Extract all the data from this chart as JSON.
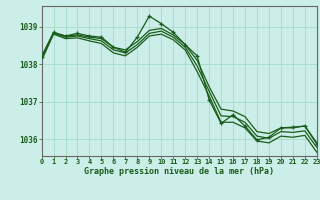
{
  "title": "Graphe pression niveau de la mer (hPa)",
  "background_color": "#cceee8",
  "grid_color": "#aaddcc",
  "line_color": "#1a5c1a",
  "x_min": 0,
  "x_max": 23,
  "y_min": 1035.55,
  "y_max": 1039.55,
  "yticks": [
    1036,
    1037,
    1038,
    1039
  ],
  "xticks": [
    0,
    1,
    2,
    3,
    4,
    5,
    6,
    7,
    8,
    9,
    10,
    11,
    12,
    13,
    14,
    15,
    16,
    17,
    18,
    19,
    20,
    21,
    22,
    23
  ],
  "smooth_series": [
    [
      1038.2,
      1038.83,
      1038.75,
      1038.78,
      1038.72,
      1038.68,
      1038.45,
      1038.38,
      1038.6,
      1038.9,
      1038.95,
      1038.78,
      1038.52,
      1038.1,
      1037.4,
      1036.8,
      1036.75,
      1036.6,
      1036.2,
      1036.15,
      1036.3,
      1036.3,
      1036.35,
      1035.9
    ],
    [
      1038.15,
      1038.83,
      1038.72,
      1038.75,
      1038.68,
      1038.62,
      1038.38,
      1038.3,
      1038.52,
      1038.82,
      1038.88,
      1038.72,
      1038.45,
      1037.95,
      1037.28,
      1036.62,
      1036.6,
      1036.45,
      1036.08,
      1036.02,
      1036.2,
      1036.18,
      1036.22,
      1035.78
    ],
    [
      1038.1,
      1038.8,
      1038.68,
      1038.7,
      1038.62,
      1038.55,
      1038.3,
      1038.22,
      1038.45,
      1038.75,
      1038.8,
      1038.65,
      1038.38,
      1037.8,
      1037.15,
      1036.45,
      1036.45,
      1036.3,
      1035.95,
      1035.9,
      1036.08,
      1036.05,
      1036.1,
      1035.65
    ]
  ],
  "main_series": [
    1038.2,
    1038.85,
    1038.75,
    1038.82,
    1038.75,
    1038.72,
    1038.45,
    1038.32,
    1038.72,
    1039.28,
    1039.08,
    1038.85,
    1038.52,
    1038.22,
    1037.05,
    1036.42,
    1036.65,
    1036.35,
    1035.98,
    1036.05,
    1036.3,
    1036.32,
    1036.35,
    1035.87
  ]
}
